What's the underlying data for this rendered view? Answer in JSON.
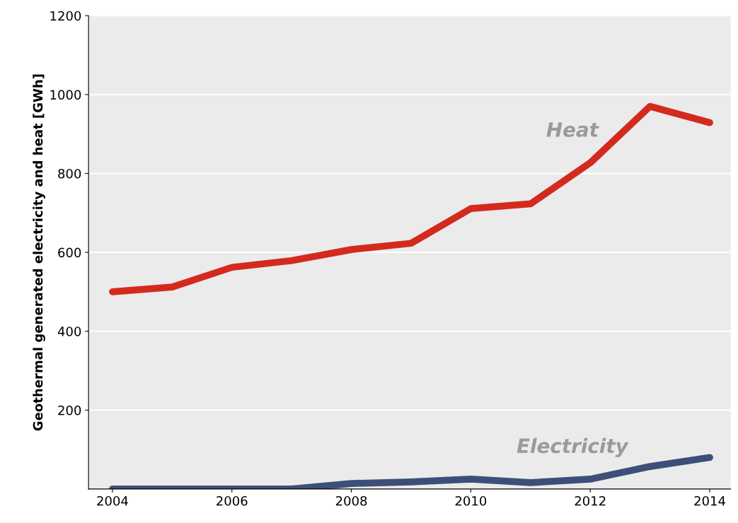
{
  "chart_data": {
    "type": "line",
    "ylabel": "Geothermal generated electricity and heat [GWh]",
    "x": [
      2004,
      2005,
      2006,
      2007,
      2008,
      2009,
      2010,
      2011,
      2012,
      2013,
      2014
    ],
    "series": [
      {
        "name": "Heat",
        "color": "#d42a1e",
        "values": [
          500,
          512,
          562,
          579,
          607,
          623,
          711,
          723,
          827,
          970,
          929
        ]
      },
      {
        "name": "Electricity",
        "color": "#3b4f78",
        "values": [
          0,
          0,
          0,
          0,
          14,
          18,
          25,
          16,
          25,
          57,
          80
        ]
      }
    ],
    "xlim": [
      2003.6,
      2014.35
    ],
    "xticks": [
      2004,
      2006,
      2008,
      2010,
      2012,
      2014
    ],
    "ylim": [
      0,
      1200
    ],
    "yticks": [
      200,
      400,
      600,
      800,
      1000,
      1200
    ],
    "grid": "y",
    "marker": "none",
    "line_style": "solid",
    "legend": false
  }
}
